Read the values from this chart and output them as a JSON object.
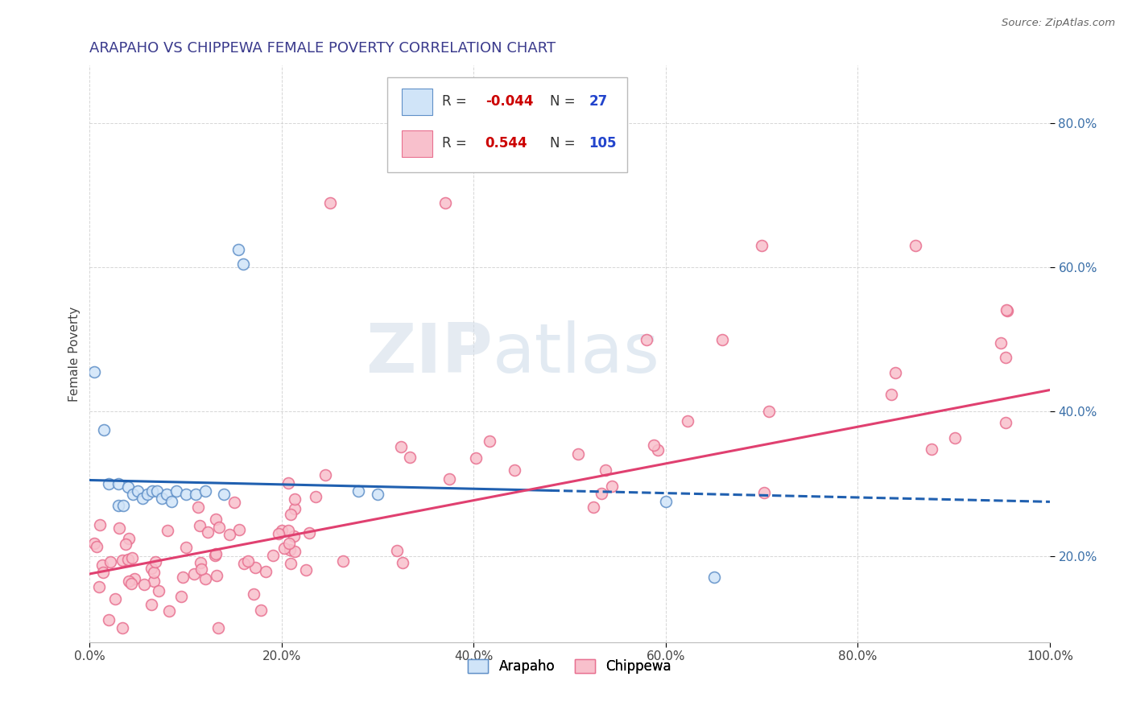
{
  "title": "ARAPAHO VS CHIPPEWA FEMALE POVERTY CORRELATION CHART",
  "source_text": "Source: ZipAtlas.com",
  "ylabel": "Female Poverty",
  "xlim": [
    0,
    1
  ],
  "ylim": [
    0.08,
    0.88
  ],
  "xticks": [
    0.0,
    0.2,
    0.4,
    0.6,
    0.8,
    1.0
  ],
  "yticks": [
    0.2,
    0.4,
    0.6,
    0.8
  ],
  "xtick_labels": [
    "0.0%",
    "20.0%",
    "40.0%",
    "60.0%",
    "80.0%",
    "100.0%"
  ],
  "ytick_labels": [
    "20.0%",
    "40.0%",
    "60.0%",
    "80.0%"
  ],
  "arapaho_edge_color": "#6090c8",
  "chippewa_edge_color": "#e87090",
  "arapaho_face_color": "#d0e4f8",
  "chippewa_face_color": "#f8c0cc",
  "arapaho_line_color": "#2060b0",
  "chippewa_line_color": "#e04070",
  "title_color": "#3a3a8c",
  "ytick_color": "#3a6fa8",
  "R_arapaho": -0.044,
  "N_arapaho": 27,
  "R_chippewa": 0.544,
  "N_chippewa": 105,
  "watermark_zip": "ZIP",
  "watermark_atlas": "atlas",
  "background_color": "#ffffff",
  "grid_color": "#cccccc",
  "legend_R_color": "#cc0000",
  "legend_N_color": "#2244cc",
  "legend_label_color": "#333333"
}
